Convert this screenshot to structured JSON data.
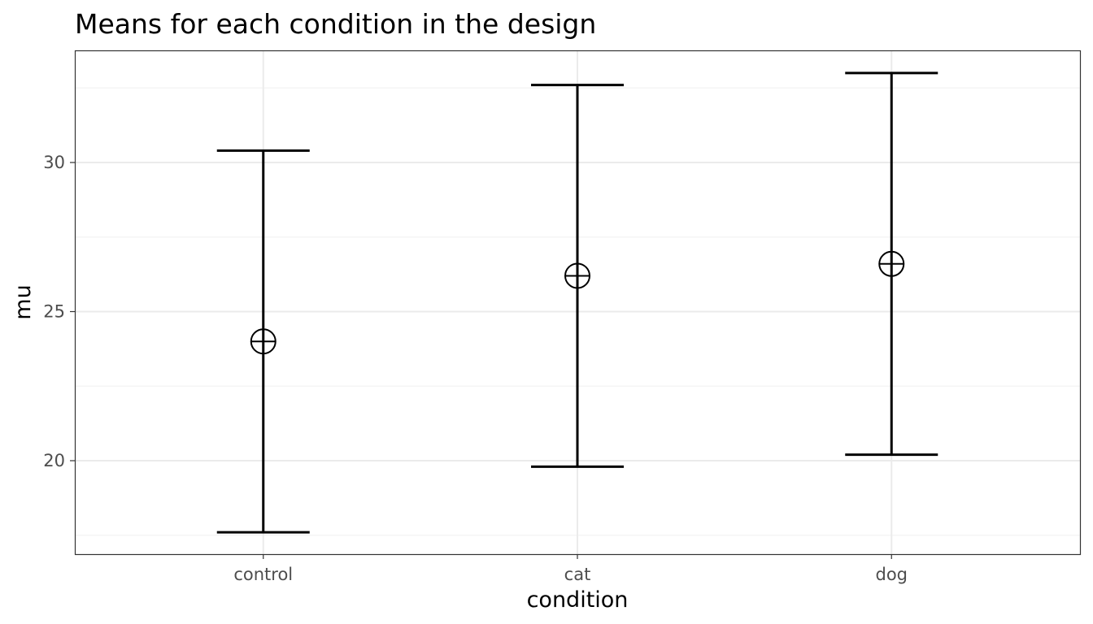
{
  "chart_data": {
    "type": "errorbar",
    "title": "Means for each condition in the design",
    "xlabel": "condition",
    "ylabel": "mu",
    "categories": [
      "control",
      "cat",
      "dog"
    ],
    "points": [
      {
        "category": "control",
        "mean": 24.0,
        "lower": 17.6,
        "upper": 30.4
      },
      {
        "category": "cat",
        "mean": 26.2,
        "lower": 19.8,
        "upper": 32.6
      },
      {
        "category": "dog",
        "mean": 26.6,
        "lower": 20.2,
        "upper": 33.0
      }
    ],
    "yticks": [
      20,
      25,
      30
    ],
    "yticks_minor": [
      17.5,
      22.5,
      27.5,
      32.5
    ],
    "ylim": [
      16.9,
      33.5
    ],
    "grid": true,
    "legend": "none",
    "colors": {
      "line": "#000000",
      "grid_major": "#ebebeb",
      "grid_minor": "#f5f5f5",
      "panel_border": "#333333",
      "tick_label": "#4d4d4d"
    }
  }
}
